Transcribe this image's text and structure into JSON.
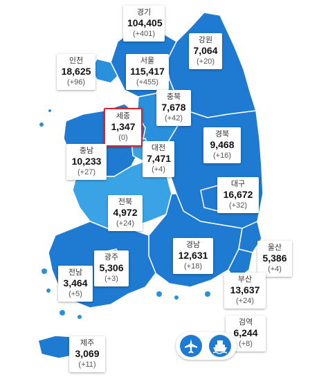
{
  "colors": {
    "region_dark": "#1f7ad1",
    "region_mid": "#2a8fdc",
    "region_light": "#3aa3e6",
    "border": "#ffffff",
    "highlight": "#d8262c"
  },
  "regions": {
    "gyeonggi": {
      "name": "경기",
      "total": "104,405",
      "delta": "(+401)"
    },
    "gangwon": {
      "name": "강원",
      "total": "7,064",
      "delta": "(+20)"
    },
    "incheon": {
      "name": "인천",
      "total": "18,625",
      "delta": "(+96)"
    },
    "seoul": {
      "name": "서울",
      "total": "115,417",
      "delta": "(+455)"
    },
    "chungbuk": {
      "name": "충북",
      "total": "7,678",
      "delta": "(+42)"
    },
    "sejong": {
      "name": "세종",
      "total": "1,347",
      "delta": "(0)"
    },
    "gyeongbuk": {
      "name": "경북",
      "total": "9,468",
      "delta": "(+16)"
    },
    "chungnam": {
      "name": "충남",
      "total": "10,233",
      "delta": "(+27)"
    },
    "daejeon": {
      "name": "대전",
      "total": "7,471",
      "delta": "(+4)"
    },
    "daegu": {
      "name": "대구",
      "total": "16,672",
      "delta": "(+32)"
    },
    "jeonbuk": {
      "name": "전북",
      "total": "4,972",
      "delta": "(+24)"
    },
    "gyeongnam": {
      "name": "경남",
      "total": "12,631",
      "delta": "(+18)"
    },
    "ulsan": {
      "name": "울산",
      "total": "5,386",
      "delta": "(+4)"
    },
    "gwangju": {
      "name": "광주",
      "total": "5,306",
      "delta": "(+3)"
    },
    "jeonnam": {
      "name": "전남",
      "total": "3,464",
      "delta": "(+5)"
    },
    "busan": {
      "name": "부산",
      "total": "13,637",
      "delta": "(+24)"
    },
    "quarantine": {
      "name": "검역",
      "total": "6,244",
      "delta": "(+8)"
    },
    "jeju": {
      "name": "제주",
      "total": "3,069",
      "delta": "(+11)"
    }
  },
  "icons": {
    "airplane": "airplane-icon",
    "ship": "ship-icon"
  }
}
